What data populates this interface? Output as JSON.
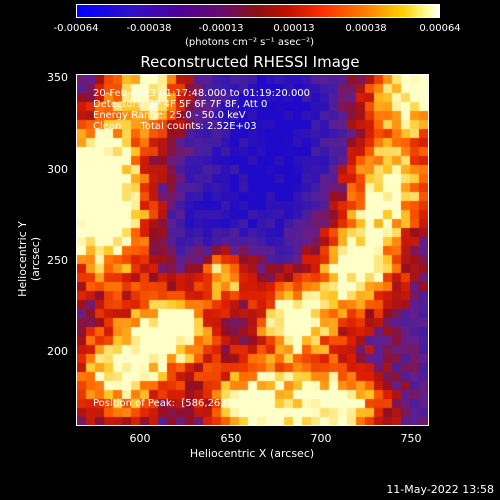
{
  "colorbar": {
    "ticks": [
      "-0.00064",
      "-0.00038",
      "-0.00013",
      "0.00013",
      "0.00038",
      "0.00064"
    ],
    "unit": "(photons cm⁻² s⁻¹ asec⁻²)"
  },
  "plot": {
    "title": "Reconstructed RHESSI Image",
    "annotations": {
      "line1": "20-Feb-2013 01:17:48.000 to 01:19:20.000",
      "line2": "Detectors: 3F 4F 5F 6F 7F 8F, Att 0",
      "line3": "Energy Range: 25.0 - 50.0 keV",
      "line4": "Clean      Total counts: 2.52E+03",
      "peak": "Position of Peak:  [586,263]"
    },
    "xlabel": "Heliocentric X (arcsec)",
    "ylabel": "Heliocentric Y (arcsec)",
    "xticks": [
      "600",
      "650",
      "700",
      "750"
    ],
    "yticks": [
      "350",
      "300",
      "250",
      "200"
    ]
  },
  "footer": {
    "date": "11-May-2022 13:58"
  }
}
